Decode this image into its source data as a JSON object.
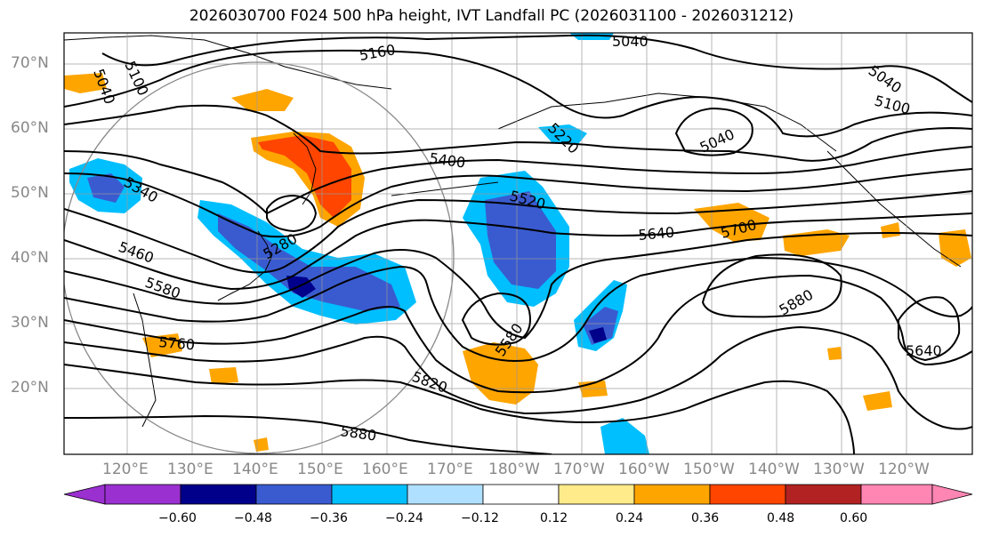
{
  "title": "2026030700 F024 500 hPa height, IVT Landfall PC (2026031100 - 2026031212)",
  "lat_labels": [
    "70°N",
    "60°N",
    "50°N",
    "40°N",
    "30°N",
    "20°N"
  ],
  "lon_labels": [
    "120°E",
    "130°E",
    "140°E",
    "150°E",
    "160°E",
    "170°E",
    "180°W",
    "170°W",
    "160°W",
    "150°W",
    "140°W",
    "130°W",
    "120°W"
  ],
  "contour_labels": [
    "5160",
    "5040",
    "5040",
    "5100",
    "5040",
    "5100",
    "5220",
    "5040",
    "5400",
    "5340",
    "5520",
    "5280",
    "5640",
    "5700",
    "5460",
    "5580",
    "5880",
    "5580",
    "5760",
    "5820",
    "5640",
    "5880"
  ],
  "colorbar": {
    "ticks": [
      "−0.60",
      "−0.48",
      "−0.36",
      "−0.24",
      "−0.12",
      "0.12",
      "0.24",
      "0.36",
      "0.48",
      "0.60"
    ],
    "colors": [
      "#9b30d0",
      "#00008b",
      "#3a5bd0",
      "#00bfff",
      "#b0e0ff",
      "#ffffff",
      "#ffeb8a",
      "#ffa500",
      "#ff4500",
      "#b22222",
      "#ff85b3"
    ]
  },
  "fill_colors": {
    "neg_deep": "#00008b",
    "neg_mid": "#3a5bd0",
    "neg_light": "#00bfff",
    "pos_light": "#ffeb8a",
    "pos_mid": "#ffa500",
    "pos_high": "#ff4500"
  }
}
